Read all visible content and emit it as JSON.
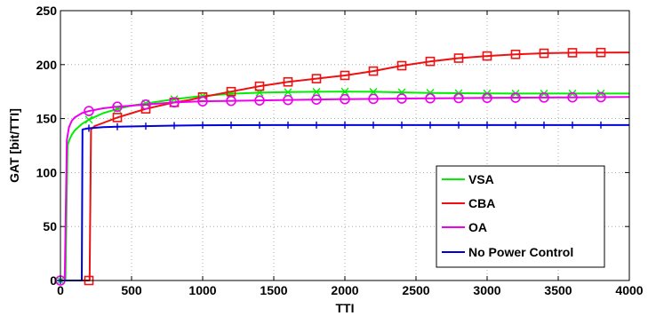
{
  "chart_data": {
    "type": "line",
    "xlabel": "TTI",
    "ylabel": "GAT [bit/TTI]",
    "xlim": [
      0,
      4000
    ],
    "ylim": [
      0,
      250
    ],
    "xticks": [
      0,
      500,
      1000,
      1500,
      2000,
      2500,
      3000,
      3500,
      4000
    ],
    "yticks": [
      0,
      50,
      100,
      150,
      200,
      250
    ],
    "grid": true,
    "legend_position": "bottom-right",
    "series": [
      {
        "name": "VSA",
        "color": "#00ee00",
        "marker": "x",
        "x": [
          0,
          35,
          50,
          65,
          80,
          100,
          150,
          200,
          300,
          400,
          500,
          600,
          800,
          1000,
          1200,
          1400,
          1600,
          1800,
          2000,
          2200,
          2400,
          2600,
          2800,
          3000,
          3200,
          3400,
          3600,
          3800,
          4000
        ],
        "y": [
          0,
          0,
          125,
          131,
          135,
          139,
          145,
          149,
          155,
          159,
          162,
          164,
          168,
          171,
          173,
          174,
          174.5,
          174.8,
          175,
          174.8,
          174.3,
          173.8,
          173.5,
          173.3,
          173.2,
          173.2,
          173.2,
          173.2,
          173.2
        ],
        "marker_x": [
          0,
          200,
          400,
          600,
          800,
          1000,
          1200,
          1400,
          1600,
          1800,
          2000,
          2200,
          2400,
          2600,
          2800,
          3000,
          3200,
          3400,
          3600,
          3800
        ]
      },
      {
        "name": "CBA",
        "color": "#ee1111",
        "marker": "square",
        "x": [
          0,
          205,
          215,
          240,
          300,
          400,
          500,
          600,
          700,
          800,
          900,
          1000,
          1200,
          1400,
          1600,
          1800,
          2000,
          2200,
          2400,
          2600,
          2800,
          3000,
          3200,
          3400,
          3600,
          3800,
          4000
        ],
        "y": [
          0,
          0,
          140,
          143,
          146,
          151,
          155,
          159,
          162,
          165,
          167,
          170,
          175,
          180,
          184,
          187,
          190,
          194,
          199,
          203,
          206,
          208,
          209.5,
          210.5,
          211,
          211.2,
          211.3
        ],
        "marker_x": [
          200,
          400,
          600,
          800,
          1000,
          1200,
          1400,
          1600,
          1800,
          2000,
          2200,
          2400,
          2600,
          2800,
          3000,
          3200,
          3400,
          3600,
          3800
        ]
      },
      {
        "name": "OA",
        "color": "#ee00ee",
        "marker": "circle",
        "x": [
          0,
          30,
          45,
          60,
          80,
          100,
          150,
          200,
          300,
          400,
          500,
          600,
          800,
          1000,
          1500,
          2000,
          2500,
          3000,
          3500,
          4000
        ],
        "y": [
          0,
          0,
          130,
          142,
          148,
          151,
          155,
          157,
          159.5,
          161,
          162,
          163,
          165,
          166,
          167,
          168,
          168.7,
          169.2,
          169.6,
          170
        ],
        "marker_x": [
          0,
          200,
          400,
          600,
          800,
          1000,
          1200,
          1400,
          1600,
          1800,
          2000,
          2200,
          2400,
          2600,
          2800,
          3000,
          3200,
          3400,
          3600,
          3800
        ]
      },
      {
        "name": "No Power Control",
        "color": "#0000dd",
        "marker": "plus",
        "x": [
          0,
          150,
          155,
          200,
          300,
          400,
          600,
          800,
          1000,
          1500,
          2000,
          3000,
          4000
        ],
        "y": [
          0,
          0,
          140,
          141,
          142,
          142.5,
          143,
          143.5,
          143.8,
          144,
          144,
          144,
          144
        ],
        "marker_x": [
          0,
          200,
          400,
          600,
          800,
          1000,
          1200,
          1400,
          1600,
          1800,
          2000,
          2200,
          2400,
          2600,
          2800,
          3000,
          3200,
          3400,
          3600,
          3800
        ]
      }
    ]
  }
}
